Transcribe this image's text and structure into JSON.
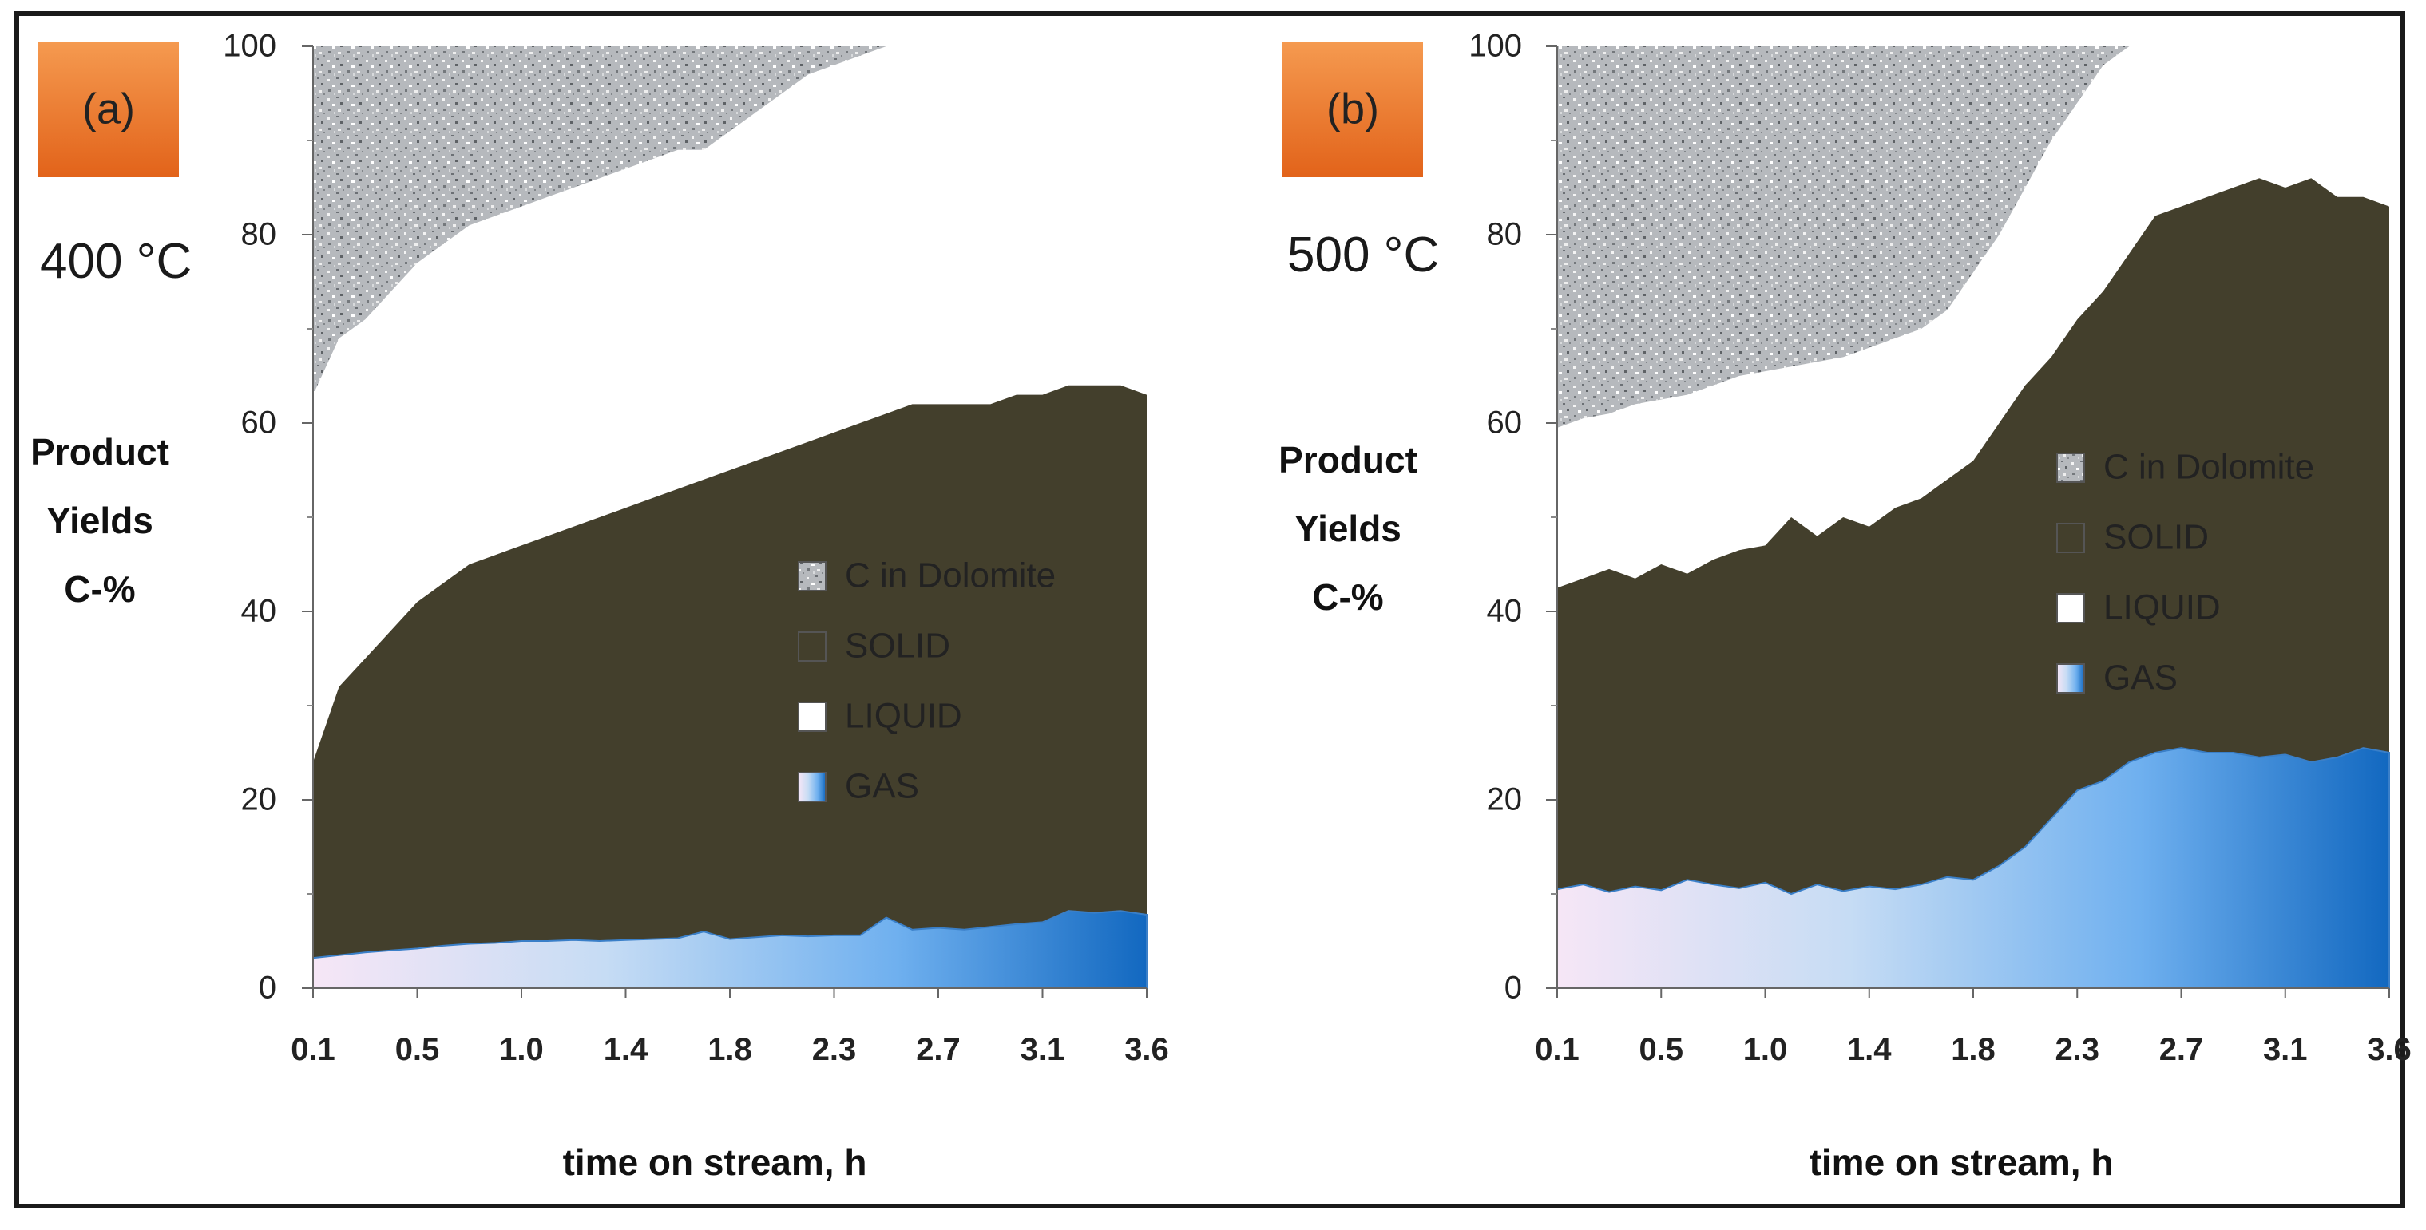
{
  "chart_data": [
    {
      "type": "area",
      "stacked": true,
      "panel_label": "(a)",
      "temperature": "400 °C",
      "ylabel": [
        "Product",
        "Yields",
        "C-%"
      ],
      "xlabel": "time on stream, h",
      "x_tick_labels": [
        "0.1",
        "0.5",
        "1.0",
        "1.4",
        "1.8",
        "2.3",
        "2.7",
        "3.1",
        "3.6"
      ],
      "y_ticks": [
        0,
        20,
        40,
        60,
        80,
        100
      ],
      "ylim": [
        0,
        100
      ],
      "x_points": 33,
      "legend": [
        "C in Dolomite",
        "SOLID",
        "LIQUID",
        "GAS"
      ],
      "series": [
        {
          "name": "GAS",
          "cumulative": [
            3.2,
            3.5,
            3.8,
            4.0,
            4.2,
            4.5,
            4.7,
            4.8,
            5.0,
            5.0,
            5.1,
            5.0,
            5.1,
            5.2,
            5.3,
            6.0,
            5.2,
            5.4,
            5.6,
            5.5,
            5.6,
            5.6,
            7.5,
            6.2,
            6.4,
            6.2,
            6.5,
            6.8,
            7.0,
            8.2,
            8.0,
            8.2,
            7.8
          ]
        },
        {
          "name": "SOLID",
          "cumulative": [
            24,
            32,
            35,
            38,
            41,
            43,
            45,
            46,
            47,
            48,
            49,
            50,
            51,
            52,
            53,
            54,
            55,
            56,
            57,
            58,
            59,
            60,
            61,
            62,
            62,
            62,
            62,
            63,
            63,
            64,
            64,
            64,
            63
          ]
        },
        {
          "name": "LIQUID",
          "cumulative": [
            63,
            69,
            71,
            74,
            77,
            79,
            81,
            82,
            83,
            84,
            85,
            86,
            87,
            88,
            89,
            89,
            91,
            93,
            95,
            97,
            98,
            99,
            100,
            100,
            100,
            100,
            100,
            100,
            100,
            100,
            100,
            100,
            100
          ]
        },
        {
          "name": "C in Dolomite",
          "cumulative": [
            100,
            100,
            100,
            100,
            100,
            100,
            100,
            100,
            100,
            100,
            100,
            100,
            100,
            100,
            100,
            100,
            100,
            100,
            100,
            100,
            100,
            100,
            100,
            100,
            100,
            100,
            100,
            100,
            100,
            100,
            100,
            100,
            100
          ]
        }
      ]
    },
    {
      "type": "area",
      "stacked": true,
      "panel_label": "(b)",
      "temperature": "500 °C",
      "ylabel": [
        "Product",
        "Yields",
        "C-%"
      ],
      "xlabel": "time on stream, h",
      "x_tick_labels": [
        "0.1",
        "0.5",
        "1.0",
        "1.4",
        "1.8",
        "2.3",
        "2.7",
        "3.1",
        "3.6"
      ],
      "y_ticks": [
        0,
        20,
        40,
        60,
        80,
        100
      ],
      "ylim": [
        0,
        100
      ],
      "x_points": 33,
      "legend": [
        "C in Dolomite",
        "SOLID",
        "LIQUID",
        "GAS"
      ],
      "series": [
        {
          "name": "GAS",
          "cumulative": [
            10.5,
            11,
            10.2,
            10.8,
            10.4,
            11.5,
            11,
            10.6,
            11.2,
            10,
            11,
            10.3,
            10.8,
            10.5,
            11,
            11.8,
            11.5,
            13,
            15,
            18,
            21,
            22,
            24,
            25,
            25.5,
            25,
            25,
            24.5,
            24.8,
            24,
            24.5,
            25.5,
            25
          ]
        },
        {
          "name": "SOLID",
          "cumulative": [
            42.5,
            43.5,
            44.5,
            43.5,
            45,
            44,
            45.5,
            46.5,
            47,
            50,
            48,
            50,
            49,
            51,
            52,
            54,
            56,
            60,
            64,
            67,
            71,
            74,
            78,
            82,
            83,
            84,
            85,
            86,
            85,
            86,
            84,
            84,
            83
          ]
        },
        {
          "name": "LIQUID",
          "cumulative": [
            59.5,
            60.5,
            61,
            62,
            62.5,
            63,
            64,
            65,
            65.5,
            66,
            66.5,
            67,
            68,
            69,
            70,
            72,
            76,
            80,
            85,
            90,
            94,
            98,
            100,
            100,
            100,
            100,
            100,
            100,
            100,
            100,
            100,
            100,
            100
          ]
        },
        {
          "name": "C in Dolomite",
          "cumulative": [
            100,
            100,
            100,
            100,
            100,
            100,
            100,
            100,
            100,
            100,
            100,
            100,
            100,
            100,
            100,
            100,
            100,
            100,
            100,
            100,
            100,
            100,
            100,
            100,
            100,
            100,
            100,
            100,
            100,
            100,
            100,
            100,
            100
          ]
        }
      ]
    }
  ],
  "colors": {
    "dolomite": "#b6b9bd",
    "solid": "#433f2c",
    "liquid": "#ffffff",
    "gas_start": "#f6e6f6",
    "gas_end": "#1268c0",
    "badge": "#ee7628"
  }
}
